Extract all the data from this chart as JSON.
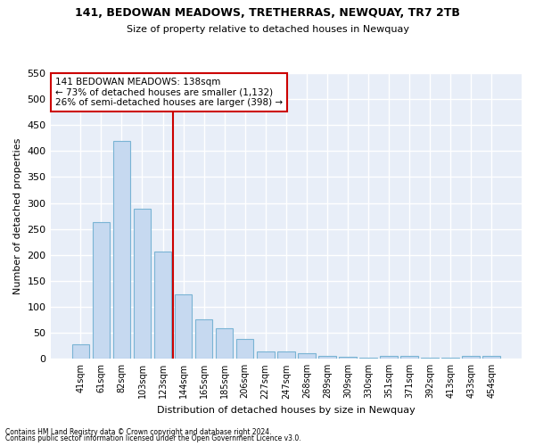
{
  "title": "141, BEDOWAN MEADOWS, TRETHERRAS, NEWQUAY, TR7 2TB",
  "subtitle": "Size of property relative to detached houses in Newquay",
  "xlabel": "Distribution of detached houses by size in Newquay",
  "ylabel": "Number of detached properties",
  "footer_line1": "Contains HM Land Registry data © Crown copyright and database right 2024.",
  "footer_line2": "Contains public sector information licensed under the Open Government Licence v3.0.",
  "bar_labels": [
    "41sqm",
    "61sqm",
    "82sqm",
    "103sqm",
    "123sqm",
    "144sqm",
    "165sqm",
    "185sqm",
    "206sqm",
    "227sqm",
    "247sqm",
    "268sqm",
    "289sqm",
    "309sqm",
    "330sqm",
    "351sqm",
    "371sqm",
    "392sqm",
    "413sqm",
    "433sqm",
    "454sqm"
  ],
  "bar_values": [
    28,
    263,
    420,
    289,
    207,
    125,
    76,
    59,
    38,
    14,
    14,
    10,
    6,
    4,
    3,
    6,
    5,
    3,
    2,
    5,
    5
  ],
  "bar_color": "#c6d9f0",
  "bar_edge_color": "#7ab4d4",
  "background_color": "#e8eef8",
  "grid_color": "#ffffff",
  "vline_color": "#cc0000",
  "vline_position": 4.5,
  "annotation_text": "141 BEDOWAN MEADOWS: 138sqm\n← 73% of detached houses are smaller (1,132)\n26% of semi-detached houses are larger (398) →",
  "annotation_box_color": "#ffffff",
  "annotation_box_edge": "#cc0000",
  "ylim": [
    0,
    550
  ],
  "yticks": [
    0,
    50,
    100,
    150,
    200,
    250,
    300,
    350,
    400,
    450,
    500,
    550
  ]
}
